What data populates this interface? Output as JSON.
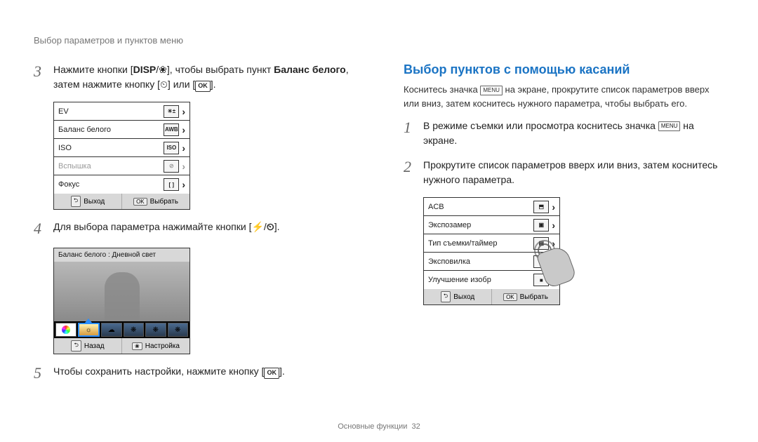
{
  "header": "Выбор параметров и пунктов меню",
  "left": {
    "step3_a": "Нажмите кнопки [",
    "step3_disp": "DISP",
    "step3_b": "/",
    "step3_flower": "❀",
    "step3_c": "], чтобы выбрать пункт ",
    "step3_bold": "Баланс белого",
    "step3_d": ", затем нажмите кнопку [",
    "step3_timer": "⏲",
    "step3_e": "] или [",
    "step3_ok": "OK",
    "step3_f": "].",
    "menu_rows": [
      {
        "label": "EV",
        "ico": "☀±"
      },
      {
        "label": "Баланс белого",
        "ico": "AWB"
      },
      {
        "label": "ISO",
        "ico": "ISO"
      },
      {
        "label": "Вспышка",
        "ico": "⊘",
        "disabled": true
      },
      {
        "label": "Фокус",
        "ico": "[ ]"
      }
    ],
    "footer_exit": "Выход",
    "footer_select": "Выбрать",
    "step4": "Для выбора параметра нажимайте кнопки [",
    "step4_b": "/",
    "step4_c": "].",
    "wb_header": "Баланс белого : Дневной свет",
    "footer_back": "Назад",
    "footer_setup": "Настройка",
    "step5": "Чтобы сохранить настройки, нажмите кнопку [",
    "step5_b": "]."
  },
  "right": {
    "section": "Выбор пунктов с помощью касаний",
    "intro_a": "Коснитесь значка ",
    "intro_menu": "MENU",
    "intro_b": " на экране, прокрутите список параметров вверх или вниз, затем коснитесь нужного параметра, чтобы выбрать его.",
    "step1_a": "В режиме съемки или просмотра коснитесь значка ",
    "step1_b": " на экране.",
    "step2": "Прокрутите список параметров вверх или вниз, затем коснитесь нужного параметра.",
    "touch_rows": [
      {
        "label": "ACB",
        "ico": "⬒"
      },
      {
        "label": "Экспозамер",
        "ico": "▣"
      },
      {
        "label": "Тип съемки/таймер",
        "ico": "▤"
      },
      {
        "label": "Эксповилка",
        "ico": "▥"
      },
      {
        "label": "Улучшение изобр",
        "ico": "■"
      }
    ]
  },
  "footer": "Основные функции",
  "page_num": "32"
}
